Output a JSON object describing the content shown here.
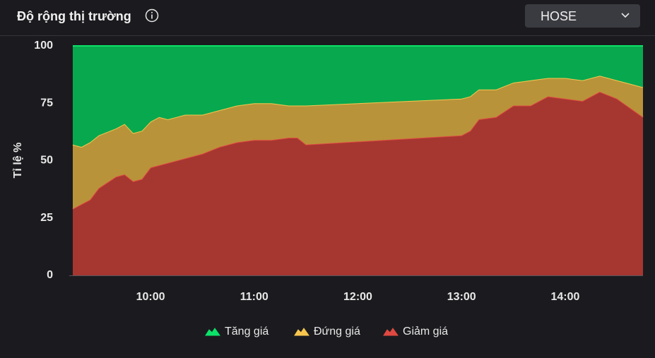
{
  "exchange": "HOSE",
  "chart_data": {
    "type": "stacked_area",
    "title": "Độ rộng thị trường",
    "y_label": "Tỉ lệ %",
    "x": [
      "09:15",
      "09:20",
      "09:25",
      "09:30",
      "09:40",
      "09:45",
      "09:50",
      "09:55",
      "10:00",
      "10:05",
      "10:10",
      "10:20",
      "10:30",
      "10:40",
      "10:50",
      "11:00",
      "11:10",
      "11:20",
      "11:25",
      "11:30",
      "13:00",
      "13:05",
      "13:10",
      "13:20",
      "13:30",
      "13:40",
      "13:50",
      "14:00",
      "14:10",
      "14:20",
      "14:30",
      "14:45"
    ],
    "xlim": [
      "09:15",
      "14:45"
    ],
    "xticks": [
      "10:00",
      "11:00",
      "12:00",
      "13:00",
      "14:00"
    ],
    "ylim": [
      0,
      100
    ],
    "yticks": [
      0,
      25,
      50,
      75,
      100
    ],
    "grid": false,
    "series": [
      {
        "name": "Tăng giá",
        "color": "#08a84e",
        "values": [
          43,
          44,
          42,
          39,
          36,
          34,
          38,
          37,
          33,
          31,
          32,
          30,
          30,
          28,
          26,
          25,
          25,
          26,
          26,
          26,
          23,
          22,
          19,
          19,
          16,
          15,
          14,
          14,
          15,
          13,
          15,
          18
        ]
      },
      {
        "name": "Đứng giá",
        "color": "#b8933a",
        "values": [
          28,
          25,
          25,
          23,
          21,
          22,
          21,
          21,
          20,
          21,
          19,
          19,
          17,
          16,
          16,
          16,
          16,
          14,
          14,
          17,
          16,
          15,
          13,
          12,
          10,
          11,
          8,
          9,
          9,
          7,
          8,
          13
        ]
      },
      {
        "name": "Giảm giá",
        "color": "#a63630",
        "values": [
          29,
          31,
          33,
          38,
          43,
          44,
          41,
          42,
          47,
          48,
          49,
          51,
          53,
          56,
          58,
          59,
          59,
          60,
          60,
          57,
          61,
          63,
          68,
          69,
          74,
          74,
          78,
          77,
          76,
          80,
          77,
          69
        ]
      }
    ]
  }
}
